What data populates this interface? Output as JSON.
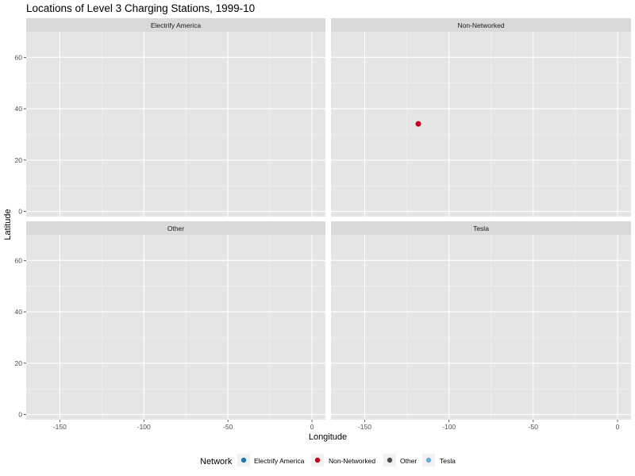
{
  "chart_data": {
    "type": "scatter",
    "title": "Locations of Level 3 Charging Stations, 1999-10",
    "xlabel": "Longitude",
    "ylabel": "Latitude",
    "xlim": [
      -170,
      8
    ],
    "ylim": [
      -2,
      70
    ],
    "x_ticks": [
      -150,
      -100,
      -50,
      0
    ],
    "y_ticks": [
      0,
      20,
      40,
      60
    ],
    "grid": true,
    "legend": {
      "title": "Network",
      "position": "bottom",
      "entries": [
        {
          "name": "Electrify America",
          "color": "#1f78b4"
        },
        {
          "name": "Non-Networked",
          "color": "#c0001c"
        },
        {
          "name": "Other",
          "color": "#4d4d4d"
        },
        {
          "name": "Tesla",
          "color": "#6aaed6"
        }
      ]
    },
    "panels": [
      {
        "name": "Electrify America",
        "points": []
      },
      {
        "name": "Non-Networked",
        "points": [
          {
            "x": -118.2,
            "y": 34.1,
            "color": "#c0001c"
          }
        ]
      },
      {
        "name": "Other",
        "points": []
      },
      {
        "name": "Tesla",
        "points": []
      }
    ]
  }
}
